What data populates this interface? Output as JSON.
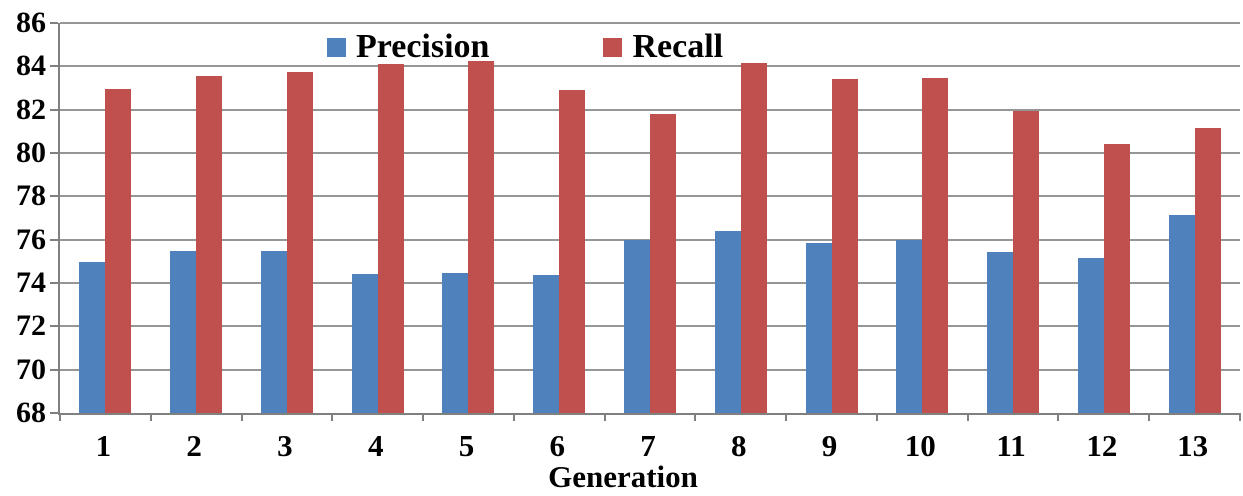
{
  "chart_data": {
    "type": "bar",
    "title": "",
    "xlabel": "Generation",
    "ylabel": "",
    "categories": [
      "1",
      "2",
      "3",
      "4",
      "5",
      "6",
      "7",
      "8",
      "9",
      "10",
      "11",
      "12",
      "13"
    ],
    "series": [
      {
        "name": "Precision",
        "color": "#4f81bd",
        "values": [
          74.95,
          75.5,
          75.5,
          74.4,
          74.45,
          74.35,
          76.0,
          76.4,
          75.85,
          76.0,
          75.45,
          75.15,
          77.15
        ]
      },
      {
        "name": "Recall",
        "color": "#c0504d",
        "values": [
          82.95,
          83.55,
          83.75,
          84.1,
          84.25,
          82.9,
          81.8,
          84.15,
          83.4,
          83.45,
          81.95,
          80.4,
          81.15
        ]
      }
    ],
    "ylim": [
      68,
      86
    ],
    "y_ticks": [
      86,
      84,
      82,
      80,
      78,
      76,
      74,
      72,
      70,
      68
    ],
    "grid": true,
    "legend_position": "top-center",
    "axis_color": "#808080",
    "grid_color": "#969696"
  }
}
